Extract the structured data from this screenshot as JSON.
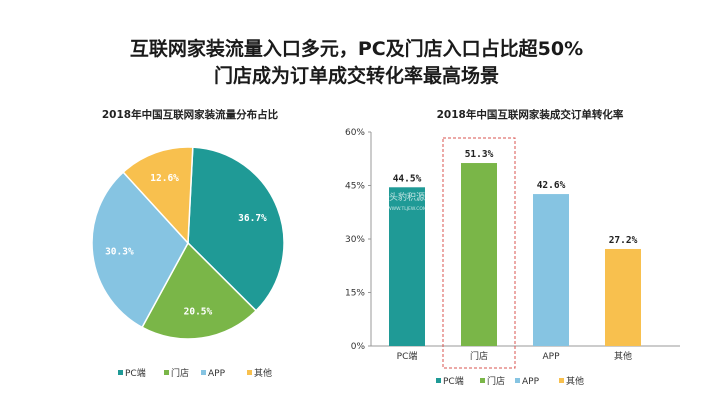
{
  "title_line1": "互联网家装流量入口多元，PC及门店入口占比超50%",
  "title_line2": "门店成为订单成交转化率最高场景",
  "chart_data": [
    {
      "type": "pie",
      "title": "2018年中国互联网家装流量分布占比",
      "categories": [
        "PC端",
        "门店",
        "APP",
        "其他"
      ],
      "values": [
        36.7,
        20.5,
        30.3,
        12.6
      ],
      "labels": [
        "36.7%",
        "20.5%",
        "30.3%",
        "12.6%"
      ],
      "colors": [
        "#1f9a96",
        "#7ab648",
        "#86c4e2",
        "#f8c04e"
      ],
      "legend_position": "bottom"
    },
    {
      "type": "bar",
      "title": "2018年中国互联网家装成交订单转化率",
      "categories": [
        "PC端",
        "门店",
        "APP",
        "其他"
      ],
      "values": [
        44.5,
        51.3,
        42.6,
        27.2
      ],
      "labels": [
        "44.5%",
        "51.3%",
        "42.6%",
        "27.2%"
      ],
      "colors": [
        "#1f9a96",
        "#7ab648",
        "#86c4e2",
        "#f8c04e"
      ],
      "yticks": [
        "0%",
        "15%",
        "30%",
        "45%",
        "60%"
      ],
      "ylim": [
        0,
        60
      ],
      "highlight_category": "门店",
      "legend_position": "bottom",
      "grid": false
    }
  ],
  "watermark": "头豹积源",
  "watermark_sub": "WWW.TLJEW.COM"
}
